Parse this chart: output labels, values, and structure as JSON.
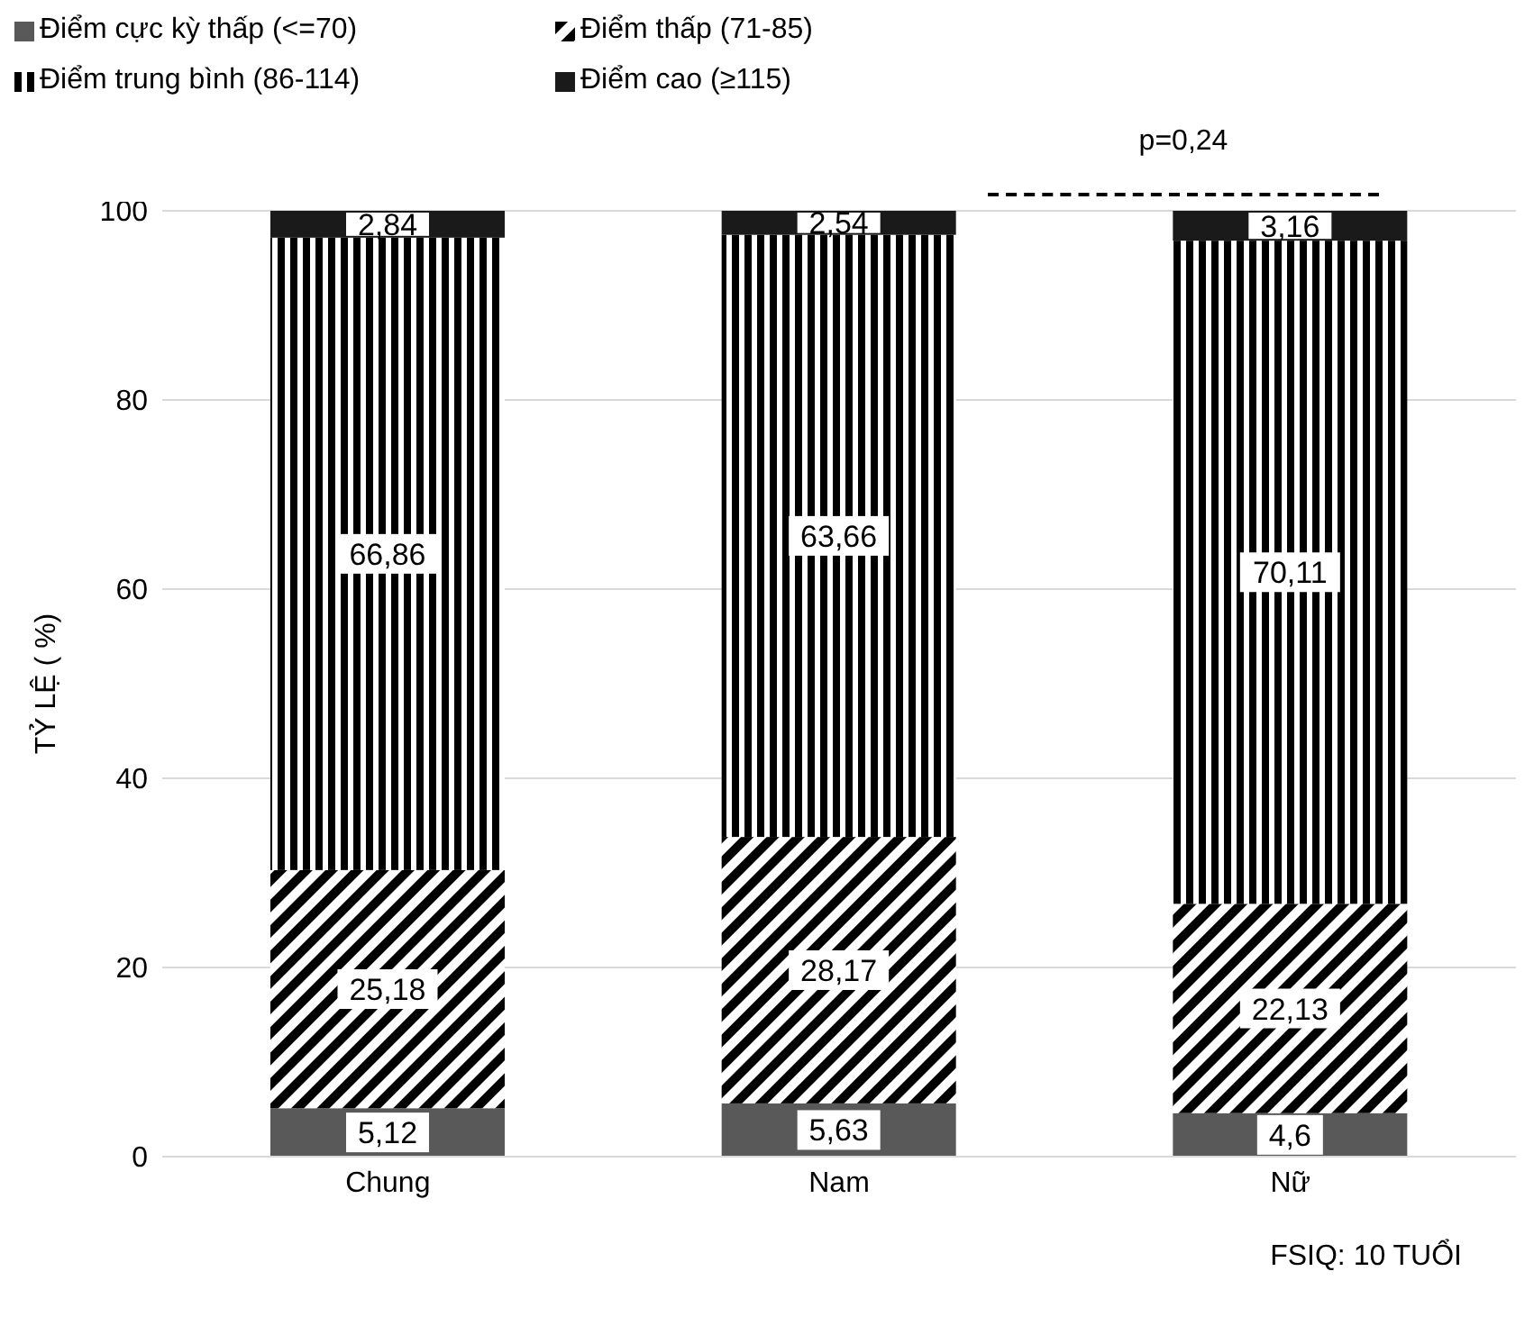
{
  "chart_data": {
    "type": "bar",
    "stacked": true,
    "xlabel": "FSIQ: 10 TUỔI",
    "ylabel": "TỶ LỆ ( %)",
    "categories": [
      "Chung",
      "Nam",
      "Nữ"
    ],
    "series": [
      {
        "name": "Điểm cực kỳ thấp (<=70)",
        "color": "#595959",
        "values": [
          5.12,
          5.63,
          4.6
        ],
        "value_labels": [
          "5,12",
          "5,63",
          "4,6"
        ]
      },
      {
        "name": "Điểm thấp (71-85)",
        "color": "#000000",
        "values": [
          25.18,
          28.17,
          22.13
        ],
        "value_labels": [
          "25,18",
          "28,17",
          "22,13"
        ]
      },
      {
        "name": "Điểm trung bình (86-114)",
        "color": "#000000",
        "values": [
          66.86,
          63.66,
          70.11
        ],
        "value_labels": [
          "66,86",
          "63,66",
          "70,11"
        ]
      },
      {
        "name": "Điểm cao (≥115)",
        "color": "#1a1a1a",
        "values": [
          2.84,
          2.54,
          3.16
        ],
        "value_labels": [
          "2,84",
          "2,54",
          "3,16"
        ]
      }
    ],
    "ylim": [
      0,
      100
    ],
    "yticks": [
      0,
      20,
      40,
      60,
      80,
      100
    ],
    "grid": "y",
    "legend": "top left",
    "annotations": [
      "p=0,24"
    ]
  }
}
